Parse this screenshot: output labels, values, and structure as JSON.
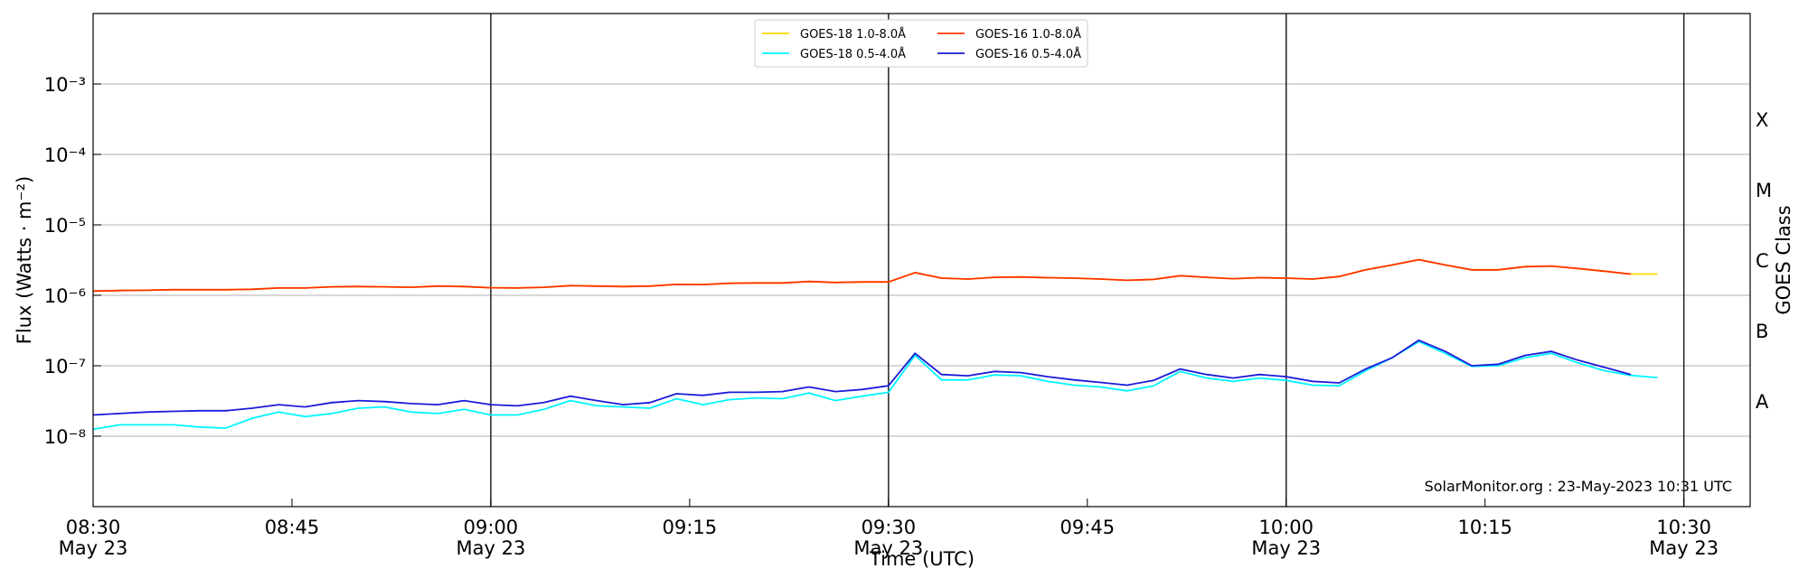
{
  "chart_data": {
    "type": "line",
    "log_y": true,
    "xlabel": "Time (UTC)",
    "ylabel": "Flux (Watts · m⁻²)",
    "y2label": "GOES Class",
    "annotation": "SolarMonitor.org : 23-May-2023 10:31 UTC",
    "x": [
      "08:30",
      "08:32",
      "08:34",
      "08:36",
      "08:38",
      "08:40",
      "08:42",
      "08:44",
      "08:46",
      "08:48",
      "08:50",
      "08:52",
      "08:54",
      "08:56",
      "08:58",
      "09:00",
      "09:02",
      "09:04",
      "09:06",
      "09:08",
      "09:10",
      "09:12",
      "09:14",
      "09:16",
      "09:18",
      "09:20",
      "09:22",
      "09:24",
      "09:26",
      "09:28",
      "09:30",
      "09:32",
      "09:34",
      "09:36",
      "09:38",
      "09:40",
      "09:42",
      "09:44",
      "09:46",
      "09:48",
      "09:50",
      "09:52",
      "09:54",
      "09:56",
      "09:58",
      "10:00",
      "10:02",
      "10:04",
      "10:06",
      "10:08",
      "10:10",
      "10:12",
      "10:14",
      "10:16",
      "10:18",
      "10:20",
      "10:22",
      "10:24",
      "10:26",
      "10:28"
    ],
    "xlim": [
      "08:30",
      "10:35"
    ],
    "xticks": [
      {
        "value": "08:30",
        "label": "08:30\nMay 23"
      },
      "08:45",
      {
        "value": "09:00",
        "label": "09:00\nMay 23"
      },
      "09:15",
      {
        "value": "09:30",
        "label": "09:30\nMay 23"
      },
      "09:45",
      {
        "value": "10:00",
        "label": "10:00\nMay 23"
      },
      "10:15",
      {
        "value": "10:30",
        "label": "10:30\nMay 23"
      }
    ],
    "vlines": [
      "09:00",
      "09:30",
      "10:00",
      "10:30"
    ],
    "ylim": [
      1e-09,
      0.01
    ],
    "yticks": [
      {
        "value": 1e-08,
        "label": "10⁻⁸"
      },
      {
        "value": 1e-07,
        "label": "10⁻⁷"
      },
      {
        "value": 1e-06,
        "label": "10⁻⁶"
      },
      {
        "value": 1e-05,
        "label": "10⁻⁵"
      },
      {
        "value": 0.0001,
        "label": "10⁻⁴"
      },
      {
        "value": 0.001,
        "label": "10⁻³"
      }
    ],
    "y2lim": [
      1e-09,
      0.01
    ],
    "y2ticks": [
      {
        "value": 3.16e-08,
        "label": "A"
      },
      {
        "value": 3.16e-07,
        "label": "B"
      },
      {
        "value": 3.16e-06,
        "label": "C"
      },
      {
        "value": 3.16e-05,
        "label": "M"
      },
      {
        "value": 0.000316,
        "label": "X"
      }
    ],
    "grid": true,
    "legend": "upper center",
    "series": [
      {
        "name": "GOES-18 1.0-8.0Å",
        "color": "#ffd700",
        "values": [
          1.15e-06,
          1.17e-06,
          1.18e-06,
          1.2e-06,
          1.2e-06,
          1.2e-06,
          1.22e-06,
          1.27e-06,
          1.27e-06,
          1.32e-06,
          1.33e-06,
          1.32e-06,
          1.3e-06,
          1.35e-06,
          1.33e-06,
          1.28e-06,
          1.27e-06,
          1.3e-06,
          1.37e-06,
          1.35e-06,
          1.33e-06,
          1.35e-06,
          1.43e-06,
          1.42e-06,
          1.48e-06,
          1.5e-06,
          1.5e-06,
          1.57e-06,
          1.52e-06,
          1.55e-06,
          1.55e-06,
          2.1e-06,
          1.75e-06,
          1.7e-06,
          1.8e-06,
          1.82e-06,
          1.78e-06,
          1.75e-06,
          1.7e-06,
          1.63e-06,
          1.68e-06,
          1.9e-06,
          1.8e-06,
          1.72e-06,
          1.78e-06,
          1.75e-06,
          1.7e-06,
          1.85e-06,
          2.3e-06,
          2.7e-06,
          3.2e-06,
          2.7e-06,
          2.3e-06,
          2.3e-06,
          2.55e-06,
          2.6e-06,
          2.4e-06,
          2.2e-06,
          2e-06,
          2e-06
        ]
      },
      {
        "name": "GOES-18 0.5-4.0Å",
        "color": "#00f5ff",
        "values": [
          1.25e-08,
          1.45e-08,
          1.45e-08,
          1.45e-08,
          1.35e-08,
          1.3e-08,
          1.8e-08,
          2.2e-08,
          1.9e-08,
          2.1e-08,
          2.5e-08,
          2.6e-08,
          2.2e-08,
          2.1e-08,
          2.4e-08,
          2e-08,
          2e-08,
          2.4e-08,
          3.2e-08,
          2.7e-08,
          2.6e-08,
          2.5e-08,
          3.4e-08,
          2.8e-08,
          3.3e-08,
          3.5e-08,
          3.4e-08,
          4.1e-08,
          3.2e-08,
          3.7e-08,
          4.2e-08,
          1.4e-07,
          6.3e-08,
          6.3e-08,
          7.4e-08,
          7.2e-08,
          6e-08,
          5.3e-08,
          5e-08,
          4.4e-08,
          5.2e-08,
          8.3e-08,
          6.7e-08,
          6e-08,
          6.7e-08,
          6.2e-08,
          5.3e-08,
          5.2e-08,
          8.5e-08,
          1.3e-07,
          2.2e-07,
          1.5e-07,
          9.8e-08,
          1e-07,
          1.3e-07,
          1.5e-07,
          1.1e-07,
          8.5e-08,
          7.3e-08,
          6.8e-08
        ]
      },
      {
        "name": "GOES-16 1.0-8.0Å",
        "color": "#ff3300",
        "values": [
          1.15e-06,
          1.17e-06,
          1.18e-06,
          1.2e-06,
          1.2e-06,
          1.2e-06,
          1.22e-06,
          1.27e-06,
          1.27e-06,
          1.32e-06,
          1.33e-06,
          1.32e-06,
          1.3e-06,
          1.35e-06,
          1.33e-06,
          1.28e-06,
          1.27e-06,
          1.3e-06,
          1.37e-06,
          1.35e-06,
          1.33e-06,
          1.35e-06,
          1.43e-06,
          1.42e-06,
          1.48e-06,
          1.5e-06,
          1.5e-06,
          1.57e-06,
          1.52e-06,
          1.55e-06,
          1.55e-06,
          2.1e-06,
          1.75e-06,
          1.7e-06,
          1.8e-06,
          1.82e-06,
          1.78e-06,
          1.75e-06,
          1.7e-06,
          1.63e-06,
          1.68e-06,
          1.9e-06,
          1.8e-06,
          1.72e-06,
          1.78e-06,
          1.75e-06,
          1.7e-06,
          1.85e-06,
          2.3e-06,
          2.7e-06,
          3.2e-06,
          2.7e-06,
          2.3e-06,
          2.3e-06,
          2.55e-06,
          2.6e-06,
          2.4e-06,
          2.2e-06,
          2e-06,
          null
        ]
      },
      {
        "name": "GOES-16 0.5-4.0Å",
        "color": "#1a1adb",
        "values": [
          2e-08,
          2.1e-08,
          2.2e-08,
          2.25e-08,
          2.3e-08,
          2.3e-08,
          2.5e-08,
          2.8e-08,
          2.6e-08,
          3e-08,
          3.2e-08,
          3.1e-08,
          2.9e-08,
          2.8e-08,
          3.2e-08,
          2.8e-08,
          2.7e-08,
          3e-08,
          3.7e-08,
          3.2e-08,
          2.8e-08,
          3e-08,
          4e-08,
          3.8e-08,
          4.2e-08,
          4.2e-08,
          4.3e-08,
          5e-08,
          4.3e-08,
          4.6e-08,
          5.2e-08,
          1.5e-07,
          7.5e-08,
          7.2e-08,
          8.3e-08,
          8e-08,
          7e-08,
          6.3e-08,
          5.8e-08,
          5.3e-08,
          6.2e-08,
          9e-08,
          7.5e-08,
          6.7e-08,
          7.5e-08,
          7e-08,
          6e-08,
          5.7e-08,
          9e-08,
          1.3e-07,
          2.3e-07,
          1.6e-07,
          1e-07,
          1.05e-07,
          1.4e-07,
          1.6e-07,
          1.2e-07,
          9.5e-08,
          7.5e-08,
          null
        ]
      }
    ]
  }
}
